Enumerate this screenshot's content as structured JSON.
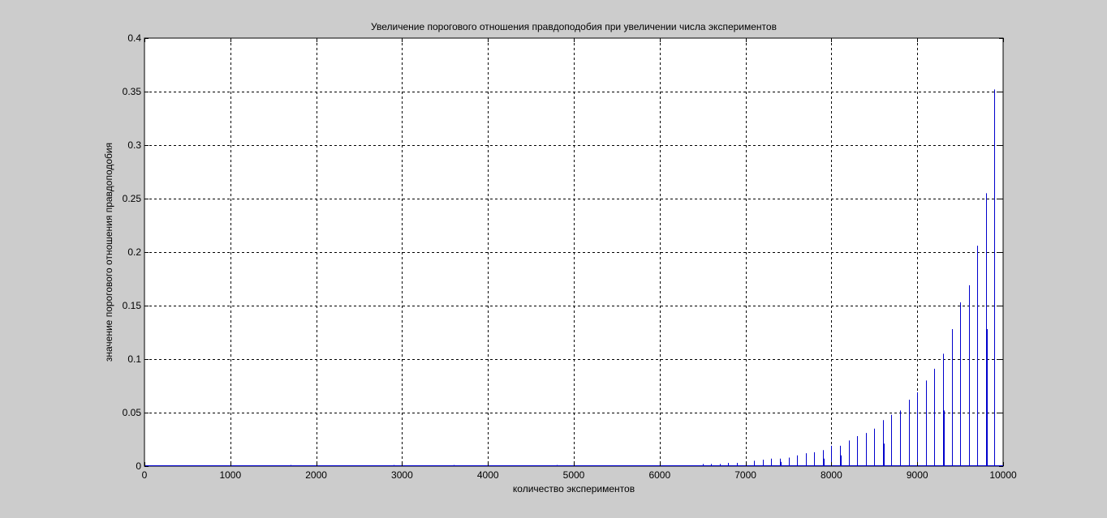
{
  "chart_data": {
    "type": "stem",
    "title": "Увеличение порогового отношения правдоподобия при увеличении числа экспериментов",
    "xlabel": "количество экспериментов",
    "ylabel": "значение порогового отношения правдоподобия",
    "xlim": [
      0,
      10000
    ],
    "ylim": [
      0,
      0.4
    ],
    "grid": true,
    "xticks": [
      "0",
      "1000",
      "2000",
      "3000",
      "4000",
      "5000",
      "6000",
      "7000",
      "8000",
      "9000",
      "10000"
    ],
    "yticks": [
      "0",
      "0.05",
      "0.1",
      "0.15",
      "0.2",
      "0.25",
      "0.3",
      "0.35",
      "0.4"
    ],
    "xtick_values": [
      0,
      1000,
      2000,
      3000,
      4000,
      5000,
      6000,
      7000,
      8000,
      9000,
      10000
    ],
    "ytick_values": [
      0,
      0.05,
      0.1,
      0.15,
      0.2,
      0.25,
      0.3,
      0.35,
      0.4
    ],
    "colors": {
      "series": "#0000cc",
      "background": "#cccccc",
      "plot_area": "#ffffff"
    },
    "series": [
      {
        "x": [
          1700,
          2900,
          3600,
          4800,
          6500,
          6600,
          6700,
          6800,
          6900,
          7000,
          7100,
          7200,
          7300,
          7400,
          7410,
          7500,
          7600,
          7700,
          7800,
          7900,
          7910,
          8000,
          8100,
          8110,
          8200,
          8300,
          8400,
          8500,
          8600,
          8610,
          8700,
          8800,
          8900,
          9000,
          9100,
          9200,
          9300,
          9310,
          9400,
          9500,
          9600,
          9700,
          9800,
          9810,
          9900
        ],
        "y": [
          0.001,
          0.001,
          0.001,
          0.001,
          0.002,
          0.002,
          0.002,
          0.003,
          0.003,
          0.004,
          0.005,
          0.006,
          0.007,
          0.007,
          0.004,
          0.008,
          0.01,
          0.012,
          0.013,
          0.015,
          0.007,
          0.019,
          0.019,
          0.01,
          0.024,
          0.028,
          0.031,
          0.035,
          0.043,
          0.021,
          0.048,
          0.052,
          0.062,
          0.069,
          0.08,
          0.091,
          0.105,
          0.052,
          0.128,
          0.153,
          0.169,
          0.206,
          0.255,
          0.128,
          0.352
        ]
      }
    ]
  }
}
